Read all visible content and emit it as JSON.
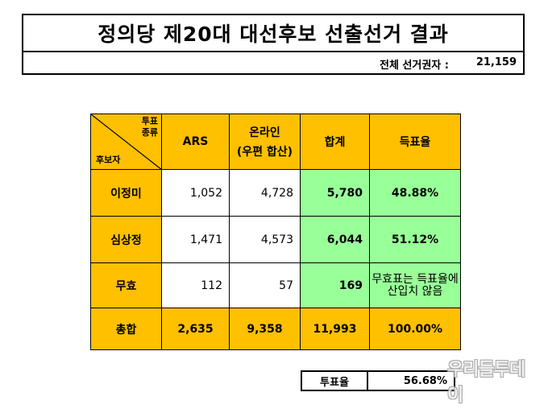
{
  "title": "정의당 제20대 대선후보 선출선거 결과",
  "voters": {
    "label": "전체 선거권자 :",
    "value": "21,159"
  },
  "table": {
    "corner_top": [
      "투표",
      "종류"
    ],
    "corner_bottom": "후보자",
    "headers": {
      "ars": "ARS",
      "online_line1": "온라인",
      "online_line2": "(우편 합산)",
      "total": "합계",
      "rate": "득표율"
    },
    "rows": [
      {
        "name": "이정미",
        "ars": "1,052",
        "online": "4,728",
        "total": "5,780",
        "rate": "48.88%"
      },
      {
        "name": "심상정",
        "ars": "1,471",
        "online": "4,573",
        "total": "6,044",
        "rate": "51.12%"
      },
      {
        "name": "무효",
        "ars": "112",
        "online": "57",
        "total": "169",
        "note_line1": "무효표는 득표율에",
        "note_line2": "산입치 않음"
      }
    ],
    "sum": {
      "name": "총합",
      "ars": "2,635",
      "online": "9,358",
      "total": "11,993",
      "rate": "100.00%"
    }
  },
  "turnout": {
    "label": "투표율",
    "value": "56.68%"
  },
  "watermark": "우리들투데이",
  "colors": {
    "header": "#ffc000",
    "highlight": "#99ff99"
  }
}
